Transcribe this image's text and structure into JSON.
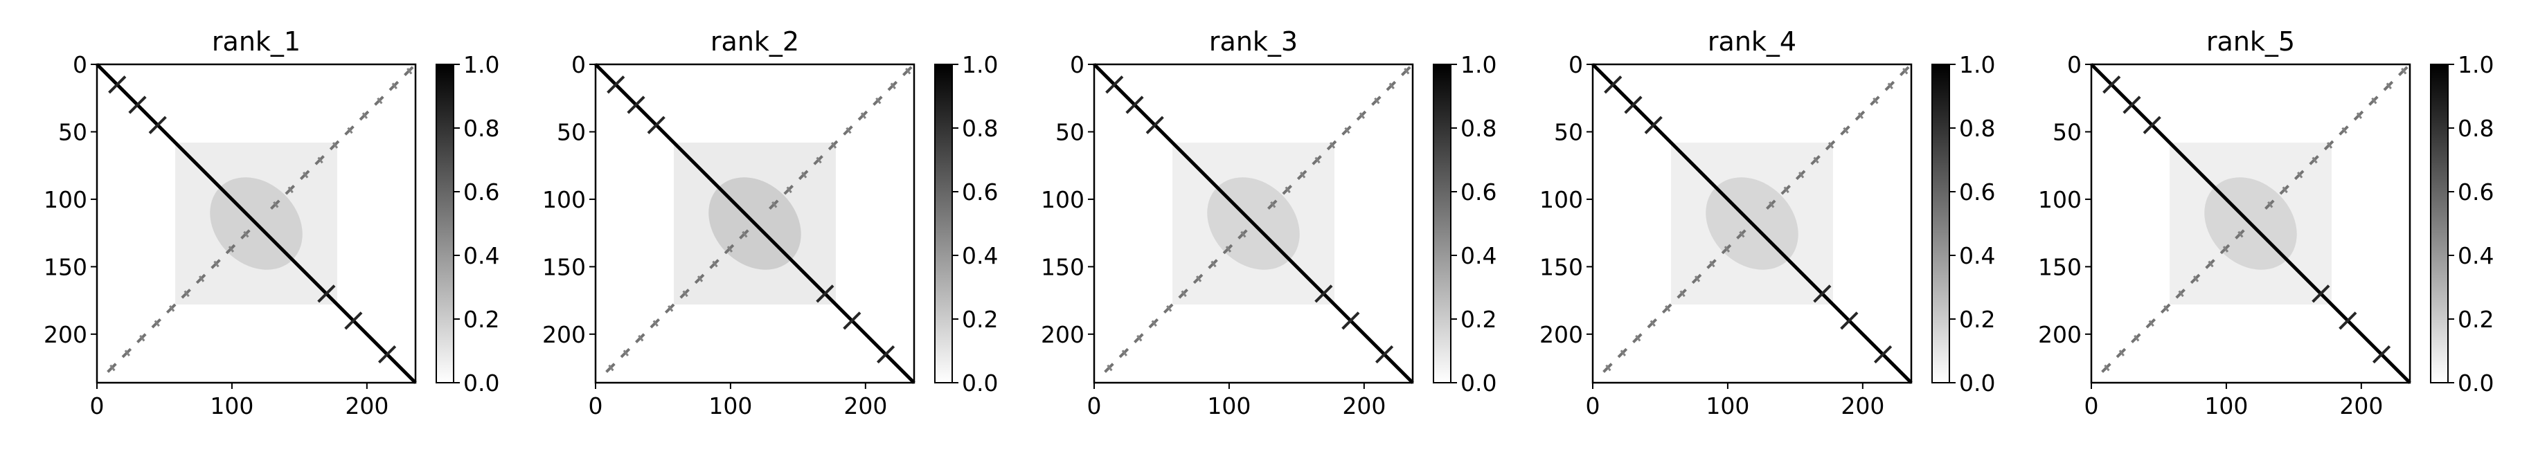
{
  "chart_data": [
    {
      "type": "heatmap",
      "title": "rank_1",
      "xlim": [
        0,
        236
      ],
      "ylim": [
        236,
        0
      ],
      "x_ticks": [
        0,
        100,
        200
      ],
      "y_ticks": [
        0,
        50,
        100,
        150,
        200
      ],
      "colorbar": {
        "range": [
          0.0,
          1.0
        ],
        "ticks": [
          "0.0",
          "0.2",
          "0.4",
          "0.6",
          "0.8",
          "1.0"
        ],
        "colormap": "Greys"
      },
      "diagonal_value": 1.0,
      "features": [
        {
          "kind": "antidiagonal_contacts",
          "value": 0.55,
          "offset": 0
        },
        {
          "kind": "cross_marks_on_diagonal",
          "positions": [
            15,
            30,
            45,
            170,
            190,
            215
          ],
          "value": 0.85
        },
        {
          "kind": "diffuse_blob",
          "center": [
            118,
            118
          ],
          "value": 0.2
        }
      ]
    },
    {
      "type": "heatmap",
      "title": "rank_2",
      "xlim": [
        0,
        236
      ],
      "ylim": [
        236,
        0
      ],
      "x_ticks": [
        0,
        100,
        200
      ],
      "y_ticks": [
        0,
        50,
        100,
        150,
        200
      ],
      "colorbar": {
        "range": [
          0.0,
          1.0
        ],
        "ticks": [
          "0.0",
          "0.2",
          "0.4",
          "0.6",
          "0.8",
          "1.0"
        ],
        "colormap": "Greys"
      },
      "diagonal_value": 1.0,
      "features": [
        {
          "kind": "antidiagonal_contacts",
          "value": 0.55,
          "offset": 0
        },
        {
          "kind": "cross_marks_on_diagonal",
          "positions": [
            15,
            30,
            45,
            170,
            190,
            215
          ],
          "value": 0.85
        },
        {
          "kind": "diffuse_blob",
          "center": [
            118,
            118
          ],
          "value": 0.22
        }
      ]
    },
    {
      "type": "heatmap",
      "title": "rank_3",
      "xlim": [
        0,
        236
      ],
      "ylim": [
        236,
        0
      ],
      "x_ticks": [
        0,
        100,
        200
      ],
      "y_ticks": [
        0,
        50,
        100,
        150,
        200
      ],
      "colorbar": {
        "range": [
          0.0,
          1.0
        ],
        "ticks": [
          "0.0",
          "0.2",
          "0.4",
          "0.6",
          "0.8",
          "1.0"
        ],
        "colormap": "Greys"
      },
      "diagonal_value": 1.0,
      "features": [
        {
          "kind": "antidiagonal_contacts",
          "value": 0.55,
          "offset": 0
        },
        {
          "kind": "cross_marks_on_diagonal",
          "positions": [
            15,
            30,
            45,
            170,
            190,
            215
          ],
          "value": 0.85
        },
        {
          "kind": "diffuse_blob",
          "center": [
            118,
            118
          ],
          "value": 0.18
        }
      ]
    },
    {
      "type": "heatmap",
      "title": "rank_4",
      "xlim": [
        0,
        236
      ],
      "ylim": [
        236,
        0
      ],
      "x_ticks": [
        0,
        100,
        200
      ],
      "y_ticks": [
        0,
        50,
        100,
        150,
        200
      ],
      "colorbar": {
        "range": [
          0.0,
          1.0
        ],
        "ticks": [
          "0.0",
          "0.2",
          "0.4",
          "0.6",
          "0.8",
          "1.0"
        ],
        "colormap": "Greys"
      },
      "diagonal_value": 1.0,
      "features": [
        {
          "kind": "antidiagonal_contacts",
          "value": 0.55,
          "offset": 0
        },
        {
          "kind": "cross_marks_on_diagonal",
          "positions": [
            15,
            30,
            45,
            170,
            190,
            215
          ],
          "value": 0.85
        },
        {
          "kind": "diffuse_blob",
          "center": [
            118,
            118
          ],
          "value": 0.18
        }
      ]
    },
    {
      "type": "heatmap",
      "title": "rank_5",
      "xlim": [
        0,
        236
      ],
      "ylim": [
        236,
        0
      ],
      "x_ticks": [
        0,
        100,
        200
      ],
      "y_ticks": [
        0,
        50,
        100,
        150,
        200
      ],
      "colorbar": {
        "range": [
          0.0,
          1.0
        ],
        "ticks": [
          "0.0",
          "0.2",
          "0.4",
          "0.6",
          "0.8",
          "1.0"
        ],
        "colormap": "Greys"
      },
      "diagonal_value": 1.0,
      "features": [
        {
          "kind": "antidiagonal_contacts",
          "value": 0.55,
          "offset": 0
        },
        {
          "kind": "cross_marks_on_diagonal",
          "positions": [
            15,
            30,
            45,
            170,
            190,
            215
          ],
          "value": 0.85
        },
        {
          "kind": "diffuse_blob",
          "center": [
            118,
            118
          ],
          "value": 0.18
        }
      ]
    }
  ]
}
